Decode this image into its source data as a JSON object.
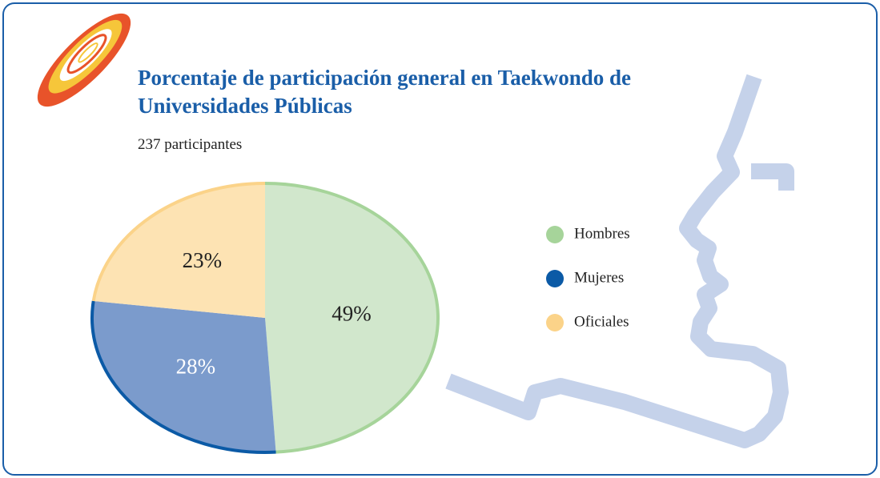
{
  "chart_data": {
    "type": "pie",
    "title": "Porcentaje de participación general en Taekwondo de Universidades Públicas",
    "subtitle": "237 participantes",
    "categories": [
      "Hombres",
      "Mujeres",
      "Oficiales"
    ],
    "values": [
      49,
      28,
      23
    ],
    "value_labels": [
      "49%",
      "28%",
      "23%"
    ],
    "colors": [
      "#d1e7cc",
      "#7b9bcc",
      "#fde3b3"
    ],
    "legend_colors": [
      "#a6d49a",
      "#0b5aa6",
      "#fbd389"
    ],
    "label_colors": [
      "#222222",
      "#ffffff",
      "#222222"
    ]
  }
}
